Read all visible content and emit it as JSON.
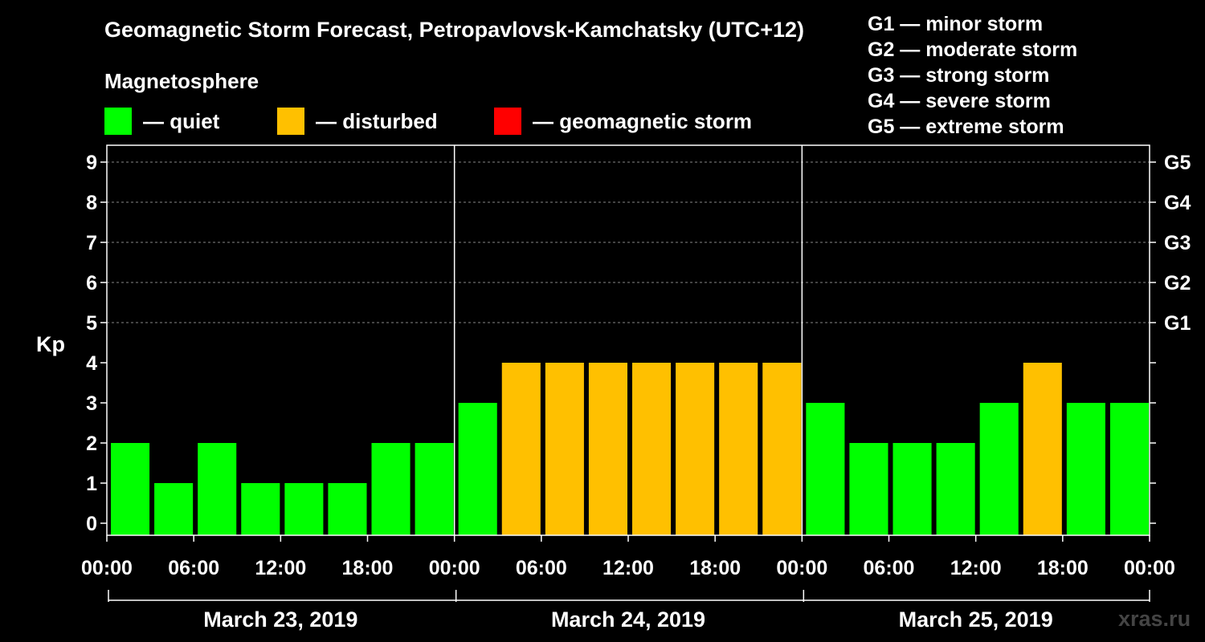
{
  "chart_data": {
    "type": "bar",
    "title": "Geomagnetic Storm Forecast, Petropavlovsk-Kamchatsky (UTC+12)",
    "subtitle": "Magnetosphere",
    "ylabel": "Kp",
    "ylim": [
      0,
      9
    ],
    "yticks": [
      "0",
      "1",
      "2",
      "3",
      "4",
      "5",
      "6",
      "7",
      "8",
      "9"
    ],
    "right_ticks": [
      {
        "kp": 5,
        "label": "G1"
      },
      {
        "kp": 6,
        "label": "G2"
      },
      {
        "kp": 7,
        "label": "G3"
      },
      {
        "kp": 8,
        "label": "G4"
      },
      {
        "kp": 9,
        "label": "G5"
      }
    ],
    "legend": [
      {
        "label": "— quiet",
        "color": "#00ff00"
      },
      {
        "label": "— disturbed",
        "color": "#ffc000"
      },
      {
        "label": "— geomagnetic storm",
        "color": "#ff0000"
      }
    ],
    "g_scale": [
      "G1 — minor storm",
      "G2 — moderate storm",
      "G3 — strong storm",
      "G4 — severe storm",
      "G5 — extreme storm"
    ],
    "days": [
      "March 23, 2019",
      "March 24, 2019",
      "March 25, 2019"
    ],
    "time_labels": [
      "00:00",
      "06:00",
      "12:00",
      "18:00",
      "00:00",
      "06:00",
      "12:00",
      "18:00",
      "00:00",
      "06:00",
      "12:00",
      "18:00",
      "00:00"
    ],
    "values": [
      2,
      1,
      2,
      1,
      1,
      1,
      2,
      2,
      3,
      4,
      4,
      4,
      4,
      4,
      4,
      4,
      3,
      2,
      2,
      2,
      3,
      4,
      3,
      3
    ],
    "status": [
      "quiet",
      "quiet",
      "quiet",
      "quiet",
      "quiet",
      "quiet",
      "quiet",
      "quiet",
      "quiet",
      "disturbed",
      "disturbed",
      "disturbed",
      "disturbed",
      "disturbed",
      "disturbed",
      "disturbed",
      "quiet",
      "quiet",
      "quiet",
      "quiet",
      "quiet",
      "disturbed",
      "quiet",
      "quiet"
    ],
    "colors": {
      "quiet": "#00ff00",
      "disturbed": "#ffc000",
      "storm": "#ff0000",
      "grid": "#888888"
    }
  },
  "watermark": "xras.ru"
}
